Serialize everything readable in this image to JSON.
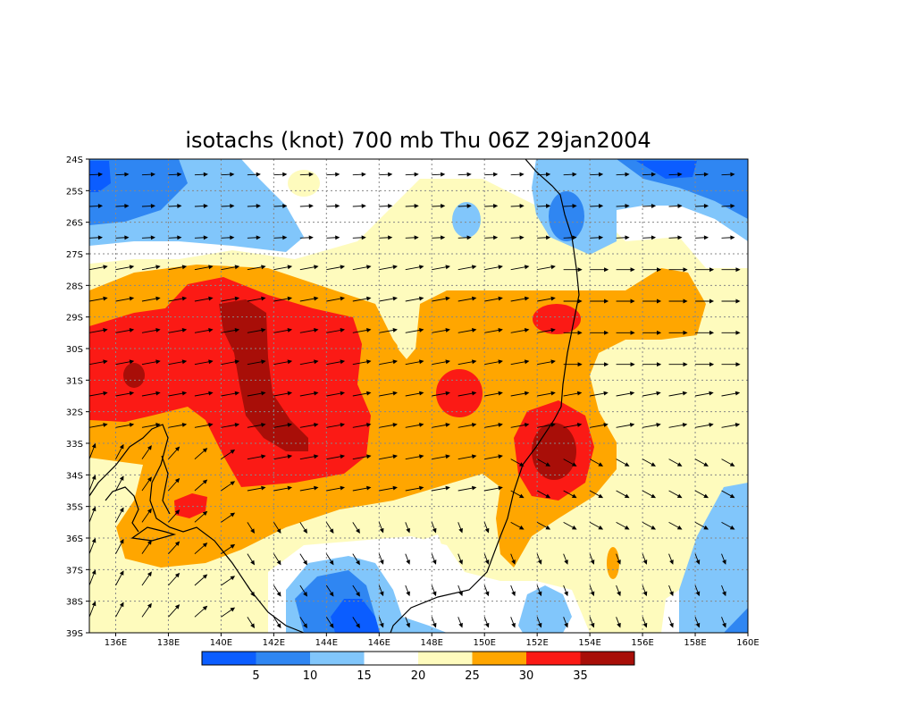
{
  "title": "isotachs (knot) 700 mb Thu 06Z 29jan2004",
  "map": {
    "lon_range": [
      135,
      160
    ],
    "lat_range": [
      -39,
      -24
    ],
    "lon_ticks": [
      "136E",
      "138E",
      "140E",
      "142E",
      "144E",
      "146E",
      "148E",
      "150E",
      "152E",
      "154E",
      "156E",
      "158E",
      "160E"
    ],
    "lat_ticks": [
      "24S",
      "25S",
      "26S",
      "27S",
      "28S",
      "29S",
      "30S",
      "31S",
      "32S",
      "33S",
      "34S",
      "35S",
      "36S",
      "37S",
      "38S",
      "39S"
    ],
    "grid": "dotted",
    "features": [
      "wind speed contours (filled)",
      "wind vectors",
      "coastline"
    ]
  },
  "colorbar": {
    "labels": [
      "5",
      "10",
      "15",
      "20",
      "25",
      "30",
      "35"
    ],
    "levels": [
      5,
      10,
      15,
      20,
      25,
      30,
      35
    ],
    "colors": [
      "#0b5dff",
      "#2f86f2",
      "#81c6fb",
      "#ffffff",
      "#fefbbd",
      "#ffa600",
      "#fb1a15",
      "#a80e08"
    ]
  },
  "colors": {
    "c0_5": "#0b5dff",
    "c5_10": "#2f86f2",
    "c10_15": "#81c6fb",
    "c15_20": "#ffffff",
    "c20_25": "#fefbbd",
    "c25_30": "#ffa600",
    "c30_35": "#fb1a15",
    "c35": "#a80e08"
  }
}
